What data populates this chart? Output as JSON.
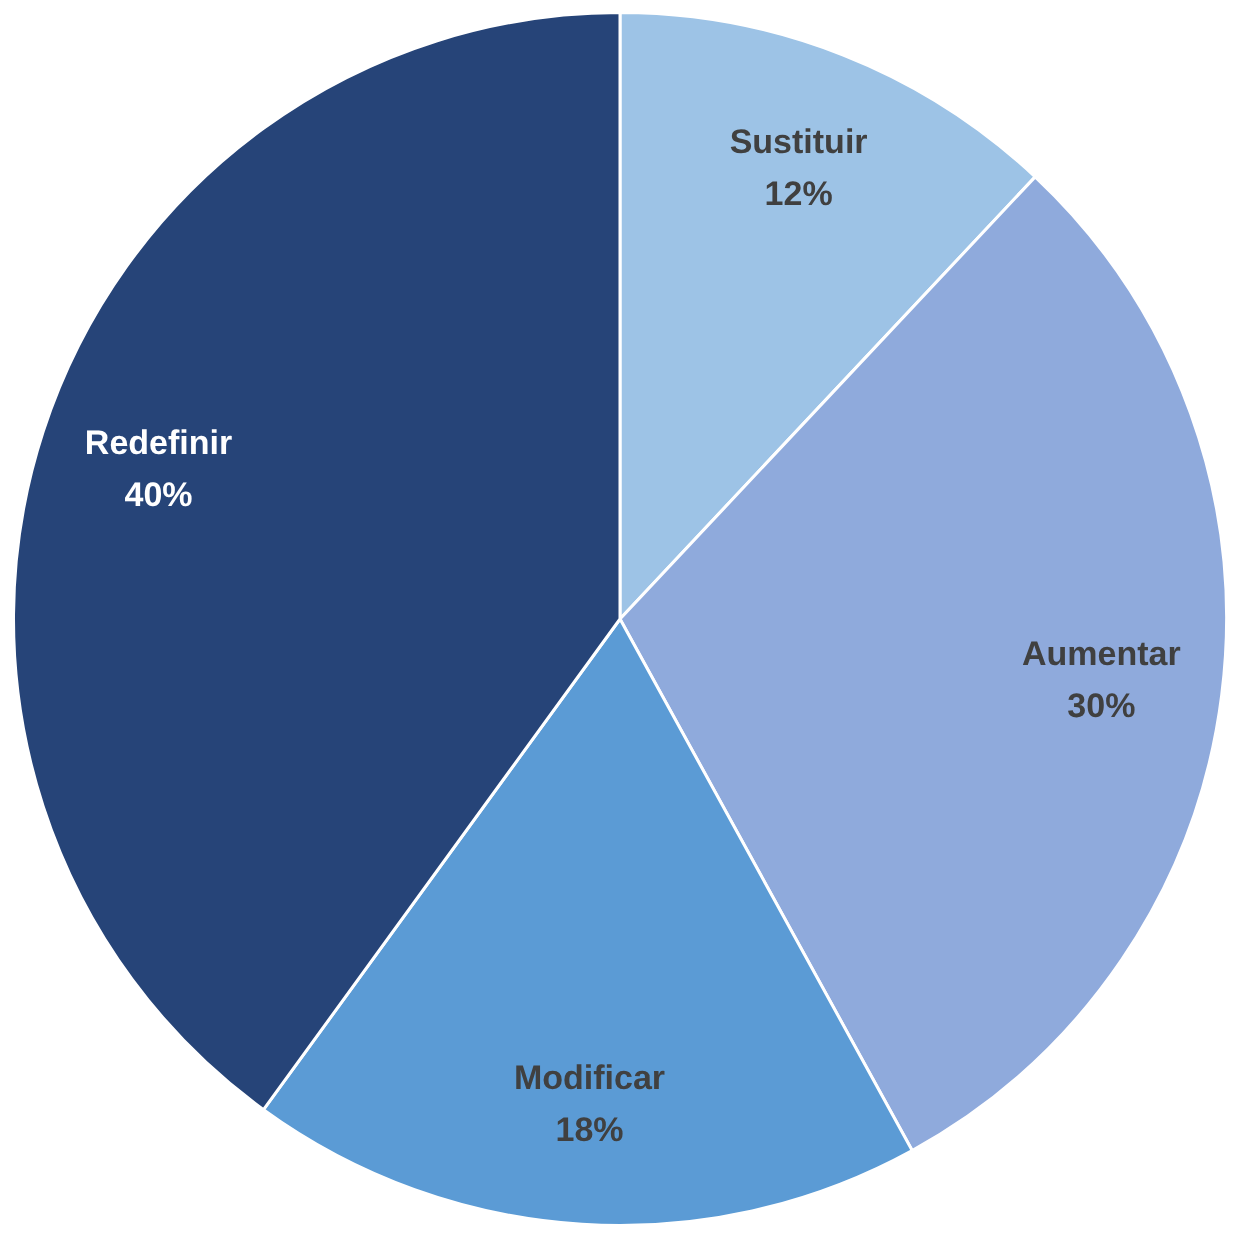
{
  "chart_data": {
    "type": "pie",
    "categories": [
      "Sustituir",
      "Aumentar",
      "Modificar",
      "Redefinir"
    ],
    "values": [
      12,
      30,
      18,
      40
    ],
    "colors": [
      "#9dc3e6",
      "#8faadc",
      "#5b9bd5",
      "#264478"
    ],
    "value_labels": [
      "12%",
      "30%",
      "18%",
      "40%"
    ],
    "data_labels": true,
    "legend": false
  }
}
